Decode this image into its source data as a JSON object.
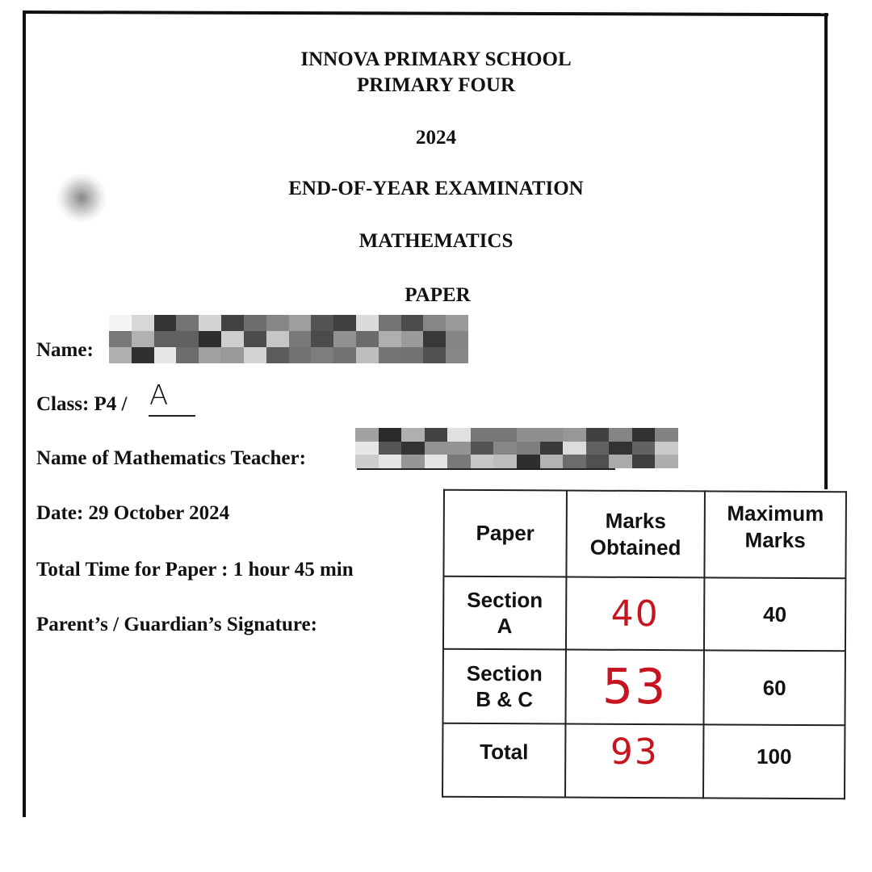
{
  "header": {
    "school": "INNOVA PRIMARY SCHOOL",
    "level": "PRIMARY FOUR",
    "year": "2024",
    "exam": "END-OF-YEAR EXAMINATION",
    "subject": "MATHEMATICS",
    "paper": "PAPER"
  },
  "fields": {
    "name_label": "Name:",
    "class_label": "Class: P4 /",
    "class_value": "A",
    "teacher_label": "Name of Mathematics Teacher:",
    "date": "Date: 29 October 2024",
    "time": "Total Time for Paper : 1 hour 45 min",
    "signature_label": "Parent’s / Guardian’s Signature:"
  },
  "marks_table": {
    "headers": [
      "Paper",
      "Marks Obtained",
      "Maximum Marks"
    ],
    "header_lines": [
      [
        "Paper"
      ],
      [
        "Marks",
        "Obtained"
      ],
      [
        "Maximum",
        "Marks"
      ]
    ],
    "rows": [
      {
        "paper": [
          "Section",
          "A"
        ],
        "obtained": "40",
        "maximum": "40"
      },
      {
        "paper": [
          "Section",
          "B & C"
        ],
        "obtained": "53",
        "maximum": "60"
      },
      {
        "paper": [
          "Total"
        ],
        "obtained": "93",
        "maximum": "100"
      }
    ],
    "obtained_color": "#c8141e"
  }
}
